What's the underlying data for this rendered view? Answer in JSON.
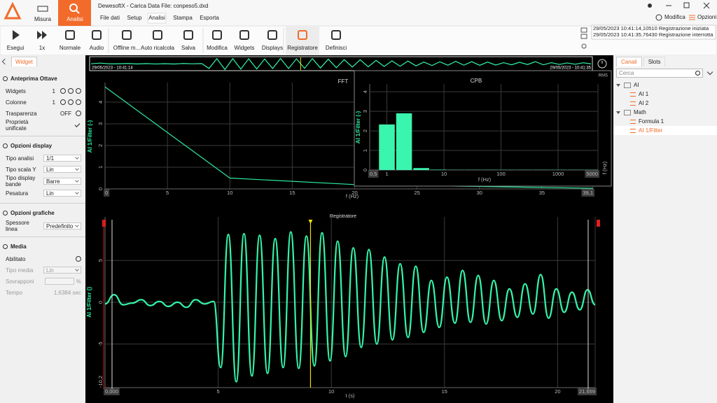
{
  "window": {
    "title": "DewesoftX - Carica Data File: conpeso5.dxd",
    "mode_tabs": [
      {
        "label": "Misura"
      },
      {
        "label": "Analisi",
        "active": true
      }
    ],
    "menu": [
      {
        "label": "File dati"
      },
      {
        "label": "Setup"
      },
      {
        "label": "Analisi",
        "active": true
      },
      {
        "label": "Stampa"
      },
      {
        "label": "Esporta"
      }
    ],
    "actions": [
      "Modifica",
      "Opzioni"
    ]
  },
  "toolbar": [
    {
      "label": "Esegui"
    },
    {
      "label": "1x"
    },
    {
      "label": "Normale"
    },
    {
      "label": "Audio"
    },
    {
      "label": "Offline m..."
    },
    {
      "label": "Auto ricalcola"
    },
    {
      "label": "Salva"
    },
    {
      "label": "Modifica"
    },
    {
      "label": "Widgets"
    },
    {
      "label": "Displays"
    },
    {
      "label": "Registratore",
      "active": true
    },
    {
      "label": "Definisci"
    }
  ],
  "event_log": [
    "29/05/2023 10:41:14,10510 Registrazione iniziata",
    "29/05/2023 10:41:35,76430 Registrazione interrotta"
  ],
  "overview": {
    "start": "29/05/2023 - 10:41:14",
    "end": "29/05/2023 - 10:41:35"
  },
  "left_panel": {
    "tab": "Widget",
    "sections": [
      {
        "title": "Anteprima Ottave",
        "rows": [
          {
            "label": "Widgets",
            "value": 1,
            "control": "stepper"
          },
          {
            "label": "Colonne",
            "value": 1,
            "control": "stepper"
          },
          {
            "label": "Trasparenza",
            "value": "OFF",
            "control": "toggle"
          },
          {
            "label": "Proprietà unificate",
            "control": "check",
            "checked": true
          }
        ]
      },
      {
        "title": "Opzioni display",
        "rows": [
          {
            "label": "Tipo analisi",
            "value": "1/1",
            "control": "select"
          },
          {
            "label": "Tipo scala Y",
            "value": "Lin",
            "control": "select"
          },
          {
            "label": "Tipo display bande",
            "value": "Barre",
            "control": "select"
          },
          {
            "label": "Pesatura",
            "value": "Lin",
            "control": "select"
          }
        ]
      },
      {
        "title": "Opzioni grafiche",
        "rows": [
          {
            "label": "Spessore linea",
            "value": "Predefinito",
            "control": "select"
          }
        ]
      },
      {
        "title": "Media",
        "rows": [
          {
            "label": "Abilitato",
            "control": "radio"
          },
          {
            "label": "Tipo media",
            "value": "Lin",
            "control": "select",
            "disabled": true
          },
          {
            "label": "Sovrapponi",
            "unit": "%",
            "control": "input",
            "disabled": true
          },
          {
            "label": "Tempo",
            "value": "1,6384 sec",
            "control": "text",
            "disabled": true
          }
        ]
      }
    ]
  },
  "right_panel": {
    "tabs": [
      "Canali",
      "Slots"
    ],
    "search": "Cerca",
    "tree": [
      {
        "label": "AI",
        "children": [
          {
            "label": "AI 1"
          },
          {
            "label": "AI 2"
          }
        ]
      },
      {
        "label": "Math",
        "children": [
          {
            "label": "Formula 1"
          },
          {
            "label": "AI 1/Filter",
            "selected": true
          }
        ]
      }
    ]
  },
  "chart_data": [
    {
      "type": "line",
      "title": "FFT",
      "x_label": "f (Hz)",
      "y_label": "AI 1/Filter (-)",
      "color": "#2ee89e",
      "x": [
        0,
        10,
        20,
        39.1
      ],
      "values": [
        4.7,
        0.5,
        0.2,
        0.03
      ],
      "xlim": [
        0,
        39.1
      ],
      "xticks": [
        0,
        5,
        10,
        15,
        20,
        25,
        30,
        35,
        {
          "value": 39.1,
          "label": "39,1"
        }
      ],
      "ylim": [
        0,
        4.9
      ],
      "yticks": [
        0,
        1,
        2,
        3,
        4
      ],
      "grid": true
    },
    {
      "type": "histogram",
      "title": "CPB",
      "subtitle": "RMS",
      "x_label": "f (Hz)",
      "x_unit_label": "f (Hz)",
      "y_label": "AI 1/Filter (-)",
      "color": "#3af5ad",
      "bins": [
        0.707,
        1.414,
        2.828,
        5.657,
        11.31,
        22.63,
        45.25,
        90.51,
        181,
        362,
        724,
        1448,
        2896,
        5793
      ],
      "values": [
        2.33,
        2.9,
        0.1,
        0.02,
        0.01,
        0.01,
        0.01,
        0.01,
        0.01,
        0.01,
        0.01,
        0.01,
        0.01
      ],
      "log_x": true,
      "xlim": [
        0.5,
        5000
      ],
      "xticks": [
        {
          "value": 0.5,
          "label": "0,5"
        },
        1,
        10,
        100,
        1000,
        5000
      ],
      "ylim": [
        0,
        4.4
      ],
      "yticks": [
        0,
        1,
        2,
        3,
        4
      ],
      "grid": true
    },
    {
      "type": "line",
      "title": "Registratore",
      "x_label": "t (s)",
      "y_label": "AI 1/Filter ()",
      "color": "#33f5a8",
      "smooth": true,
      "x": [
        0,
        0.4,
        0.8,
        1.2,
        1.6,
        2.0,
        2.4,
        2.8,
        3.2,
        3.6,
        4.0,
        4.4,
        4.8,
        5.11,
        5.45,
        5.8,
        6.14,
        6.49,
        6.83,
        7.18,
        7.52,
        7.87,
        8.21,
        8.56,
        8.9,
        9.25,
        9.59,
        9.94,
        10.28,
        10.63,
        10.97,
        11.32,
        11.66,
        12.01,
        12.35,
        12.7,
        13.04,
        13.39,
        13.73,
        14.08,
        14.42,
        14.77,
        15.11,
        15.46,
        15.8,
        16.15,
        16.49,
        16.84,
        17.18,
        17.53,
        17.87,
        18.22,
        18.56,
        18.91,
        19.25,
        19.6,
        19.94,
        20.29,
        20.63,
        20.98,
        21.32,
        21.659
      ],
      "values": [
        -0.2,
        0.9,
        -0.3,
        -0.1,
        0.3,
        -0.4,
        0.1,
        -0.5,
        0,
        -0.6,
        0.3,
        -0.2,
        0.1,
        -7.8,
        8.1,
        -9.5,
        8.2,
        -8.8,
        8.0,
        -8.5,
        7.6,
        -7.8,
        8.4,
        -7.9,
        7.9,
        -7.6,
        8.3,
        -7.0,
        7.3,
        -6.5,
        6.5,
        -5.4,
        6.3,
        -5.0,
        5.4,
        -4.5,
        4.6,
        -4.2,
        4.3,
        -3.6,
        2.6,
        -3.0,
        3.0,
        -2.5,
        3.8,
        -2.4,
        3.2,
        -2.6,
        2.6,
        -2.2,
        1.6,
        -1.8,
        2.2,
        -1.4,
        3.3,
        -1.9,
        1.6,
        -1.2,
        1.2,
        -0.9,
        1.5,
        -0.3
      ],
      "cursor": 9.08,
      "xlim": [
        0,
        21.659
      ],
      "xticks": [
        {
          "value": 0,
          "label": "0,000"
        },
        5,
        10,
        15,
        20,
        {
          "value": 21.659,
          "label": "21,659"
        }
      ],
      "ylim": [
        -10.2,
        10.2
      ],
      "yticks": [
        {
          "value": -10.2,
          "label": "-10,2"
        },
        -5,
        0,
        5
      ],
      "grid": true
    }
  ]
}
